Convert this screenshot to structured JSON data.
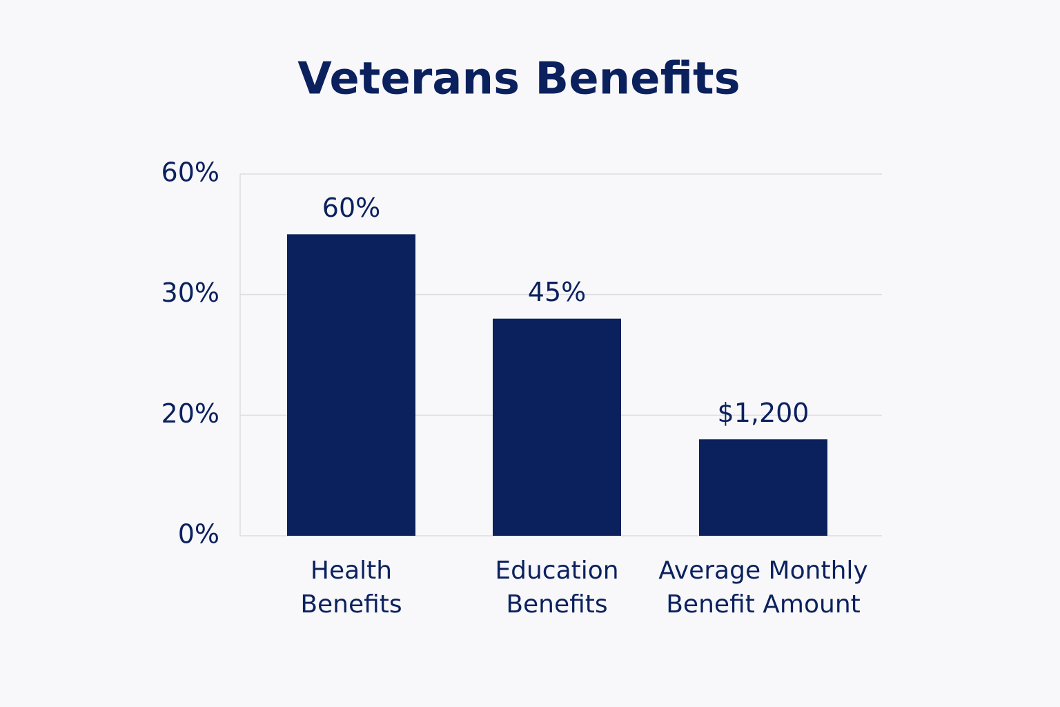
{
  "chart_data": {
    "type": "bar",
    "title": "Veterans Benefits",
    "categories": [
      "Health\nBenefits",
      "Education\nBenefits",
      "Average Monthly\nBenefit Amount"
    ],
    "values": [
      45,
      28,
      16
    ],
    "annotations": [
      "60%",
      "45%",
      "$1,200"
    ],
    "color": "#0b215e",
    "ylim": [
      0,
      60
    ],
    "yticks": [
      {
        "value": 0,
        "label": "0%"
      },
      {
        "value": 20,
        "label": "20%"
      },
      {
        "value": 30,
        "label": "30%"
      },
      {
        "value": 60,
        "label": "60%"
      }
    ],
    "grid": true
  }
}
